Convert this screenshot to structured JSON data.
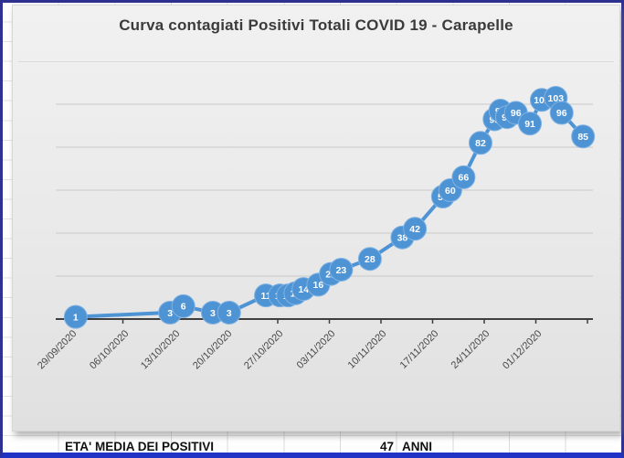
{
  "chart_data": {
    "type": "line",
    "title": "Curva contagiati Positivi Totali COVID 19 - Carapelle",
    "grid": true,
    "legend": "none",
    "data_labels": "centered-on-marker",
    "marker": "circle",
    "x_axis": {
      "tick_labels": [
        "29/09/2020",
        "06/10/2020",
        "13/10/2020",
        "20/10/2020",
        "27/10/2020",
        "03/11/2020",
        "10/11/2020",
        "17/11/2020",
        "24/11/2020",
        "01/12/2020"
      ],
      "tick_interval_days": 7,
      "label_rotation_deg": 45
    },
    "y_axis": {
      "min": 0,
      "max": 110,
      "gridline_step": 20,
      "labels_visible": false
    },
    "series": [
      {
        "name": "Contagiati Positivi Totali",
        "color": "#4e93d4",
        "points": [
          {
            "day": 0.6,
            "value": 1
          },
          {
            "day": 13.4,
            "value": 3
          },
          {
            "day": 15.2,
            "value": 6
          },
          {
            "day": 19.2,
            "value": 3
          },
          {
            "day": 21.4,
            "value": 3
          },
          {
            "day": 26.4,
            "value": 11
          },
          {
            "day": 28.3,
            "value": 11
          },
          {
            "day": 29.4,
            "value": 11
          },
          {
            "day": 30.4,
            "value": 12
          },
          {
            "day": 31.5,
            "value": 14
          },
          {
            "day": 33.5,
            "value": 16
          },
          {
            "day": 35.2,
            "value": 21
          },
          {
            "day": 36.6,
            "value": 23
          },
          {
            "day": 40.5,
            "value": 28
          },
          {
            "day": 44.9,
            "value": 38
          },
          {
            "day": 46.6,
            "value": 42
          },
          {
            "day": 50.4,
            "value": 57
          },
          {
            "day": 51.4,
            "value": 60
          },
          {
            "day": 53.2,
            "value": 66
          },
          {
            "day": 55.5,
            "value": 82
          },
          {
            "day": 57.4,
            "value": 93
          },
          {
            "day": 58.2,
            "value": 97
          },
          {
            "day": 59.1,
            "value": 94
          },
          {
            "day": 60.3,
            "value": 96
          },
          {
            "day": 62.2,
            "value": 91
          },
          {
            "day": 63.8,
            "value": 102
          },
          {
            "day": 65.7,
            "value": 103
          },
          {
            "day": 66.5,
            "value": 96
          },
          {
            "day": 69.4,
            "value": 85
          }
        ]
      }
    ]
  },
  "sheet": {
    "age_label": "ETA' MEDIA DEI POSITIVI",
    "age_value": "47",
    "age_unit": "ANNI"
  },
  "colors": {
    "series": "#4e93d4",
    "marker_rim": "#7fb2e2",
    "data_label_text": "#ffffff",
    "gridline": "#c9c9c9",
    "axis": "#3f3f3f",
    "tick_label_text": "#474747",
    "title_text": "#3b3b3b",
    "frame_border": "#2f3191",
    "frame_border_bottom": "#2133c4"
  }
}
